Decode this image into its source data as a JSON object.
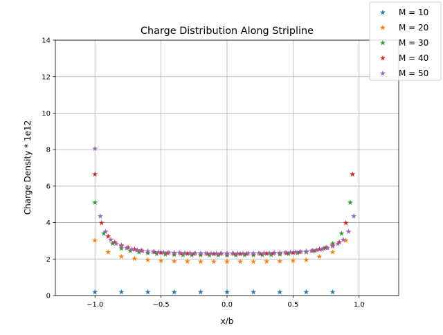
{
  "chart_data": {
    "type": "scatter",
    "title": "Charge Distribution Along Stripline",
    "xlabel": "x/b",
    "ylabel": "Charge Density * 1e12",
    "xlim": [
      -1.3,
      1.3
    ],
    "ylim": [
      0,
      14
    ],
    "xticks": [
      -1.0,
      -0.5,
      0.0,
      0.5,
      1.0
    ],
    "xtick_labels": [
      "−1.0",
      "−0.5",
      "0.0",
      "0.5",
      "1.0"
    ],
    "yticks": [
      0,
      2,
      4,
      6,
      8,
      10,
      12,
      14
    ],
    "ytick_labels": [
      "0",
      "2",
      "4",
      "6",
      "8",
      "10",
      "12",
      "14"
    ],
    "grid": true,
    "marker": "star",
    "legend_position": "top-right",
    "series": [
      {
        "name": "M = 10",
        "color": "#1f77b4",
        "x": [
          -1.0,
          -0.8,
          -0.6,
          -0.4,
          -0.2,
          0.0,
          0.2,
          0.4,
          0.6,
          0.8
        ],
        "y": [
          0.19,
          0.19,
          0.19,
          0.19,
          0.19,
          0.19,
          0.19,
          0.19,
          0.19,
          0.19
        ]
      },
      {
        "name": "M = 20",
        "color": "#ff7f0e",
        "x": [
          -1.0,
          -0.9,
          -0.8,
          -0.7,
          -0.6,
          -0.5,
          -0.4,
          -0.3,
          -0.2,
          -0.1,
          0.0,
          0.1,
          0.2,
          0.3,
          0.4,
          0.5,
          0.6,
          0.7,
          0.8,
          0.9
        ],
        "y": [
          3.02,
          2.38,
          2.13,
          2.02,
          1.95,
          1.91,
          1.88,
          1.87,
          1.86,
          1.86,
          1.86,
          1.86,
          1.86,
          1.87,
          1.88,
          1.91,
          1.95,
          2.13,
          2.38,
          3.02
        ]
      },
      {
        "name": "M = 30",
        "color": "#2ca02c",
        "x": [
          -1.0,
          -0.933,
          -0.867,
          -0.8,
          -0.733,
          -0.667,
          -0.6,
          -0.533,
          -0.467,
          -0.4,
          -0.333,
          -0.267,
          -0.2,
          -0.133,
          -0.067,
          0.0,
          0.067,
          0.133,
          0.2,
          0.267,
          0.333,
          0.4,
          0.467,
          0.533,
          0.6,
          0.667,
          0.733,
          0.8,
          0.867,
          0.933
        ],
        "y": [
          5.1,
          3.4,
          2.85,
          2.58,
          2.45,
          2.38,
          2.33,
          2.29,
          2.26,
          2.24,
          2.23,
          2.22,
          2.22,
          2.21,
          2.21,
          2.21,
          2.21,
          2.22,
          2.22,
          2.23,
          2.24,
          2.26,
          2.29,
          2.33,
          2.38,
          2.45,
          2.58,
          2.85,
          3.4,
          5.1
        ]
      },
      {
        "name": "M = 40",
        "color": "#d62728",
        "x": [
          -1.0,
          -0.95,
          -0.9,
          -0.85,
          -0.8,
          -0.75,
          -0.7,
          -0.65,
          -0.6,
          -0.55,
          -0.5,
          -0.45,
          -0.4,
          -0.35,
          -0.3,
          -0.25,
          -0.2,
          -0.15,
          -0.1,
          -0.05,
          0.0,
          0.05,
          0.1,
          0.15,
          0.2,
          0.25,
          0.3,
          0.35,
          0.4,
          0.45,
          0.5,
          0.55,
          0.6,
          0.65,
          0.7,
          0.75,
          0.8,
          0.85,
          0.9,
          0.95
        ],
        "y": [
          6.65,
          3.98,
          3.24,
          2.92,
          2.75,
          2.63,
          2.54,
          2.47,
          2.42,
          2.38,
          2.35,
          2.33,
          2.32,
          2.31,
          2.3,
          2.29,
          2.29,
          2.28,
          2.28,
          2.28,
          2.28,
          2.28,
          2.28,
          2.28,
          2.29,
          2.29,
          2.3,
          2.31,
          2.32,
          2.33,
          2.35,
          2.38,
          2.42,
          2.47,
          2.54,
          2.63,
          2.75,
          2.92,
          3.98,
          6.65
        ]
      },
      {
        "name": "M = 50",
        "color": "#9467bd",
        "x": [
          -1.0,
          -0.96,
          -0.92,
          -0.88,
          -0.84,
          -0.8,
          -0.76,
          -0.72,
          -0.68,
          -0.64,
          -0.6,
          -0.56,
          -0.52,
          -0.48,
          -0.44,
          -0.4,
          -0.36,
          -0.32,
          -0.28,
          -0.24,
          -0.2,
          -0.16,
          -0.12,
          -0.08,
          -0.04,
          0.0,
          0.04,
          0.08,
          0.12,
          0.16,
          0.2,
          0.24,
          0.28,
          0.32,
          0.36,
          0.4,
          0.44,
          0.48,
          0.52,
          0.56,
          0.6,
          0.64,
          0.68,
          0.72,
          0.76,
          0.8,
          0.84,
          0.88,
          0.92,
          0.96
        ],
        "y": [
          8.05,
          4.35,
          3.5,
          3.06,
          2.84,
          2.7,
          2.61,
          2.54,
          2.49,
          2.45,
          2.42,
          2.4,
          2.38,
          2.37,
          2.36,
          2.35,
          2.34,
          2.33,
          2.33,
          2.32,
          2.32,
          2.32,
          2.31,
          2.31,
          2.31,
          2.31,
          2.31,
          2.31,
          2.31,
          2.32,
          2.32,
          2.32,
          2.33,
          2.33,
          2.34,
          2.35,
          2.36,
          2.37,
          2.38,
          2.4,
          2.42,
          2.45,
          2.49,
          2.54,
          2.61,
          2.7,
          2.84,
          3.06,
          3.5,
          4.35
        ]
      }
    ]
  }
}
